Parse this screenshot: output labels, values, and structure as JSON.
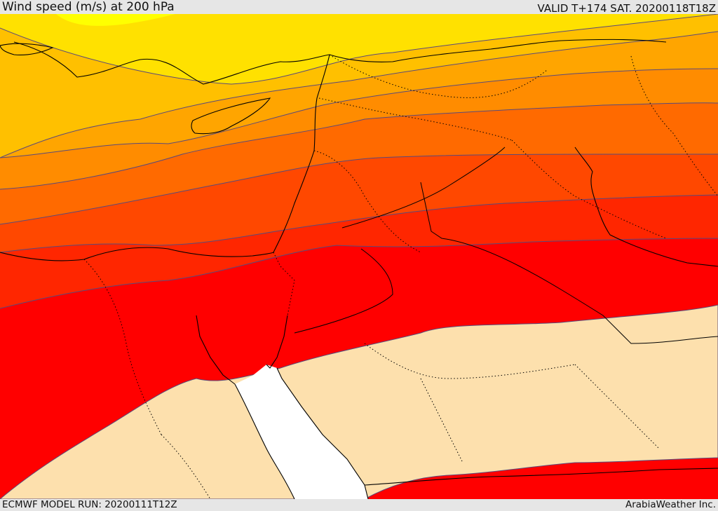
{
  "header": {
    "title": "Wind speed (m/s) at 200 hPa",
    "valid": "VALID T+174 SAT. 20200118T18Z"
  },
  "footer": {
    "model_run": "ECMWF MODEL RUN: 20200111T12Z",
    "credit": "ArabiaWeather Inc."
  },
  "map": {
    "variable": "wind-speed",
    "level": "200 hPa",
    "colors": {
      "band_1": "#ffff00",
      "band_2": "#ffe100",
      "band_3": "#ffc000",
      "band_4": "#ffa500",
      "band_5": "#ff8c00",
      "band_6": "#ff6a00",
      "band_7": "#ff4800",
      "band_8": "#ff2600",
      "band_9": "#ff0000",
      "low_speed_fill": "#fde0ad",
      "sea_no_data": "#ffffff",
      "contour": "#5a4a7a",
      "coastline": "#000000",
      "border": "#000000"
    }
  }
}
